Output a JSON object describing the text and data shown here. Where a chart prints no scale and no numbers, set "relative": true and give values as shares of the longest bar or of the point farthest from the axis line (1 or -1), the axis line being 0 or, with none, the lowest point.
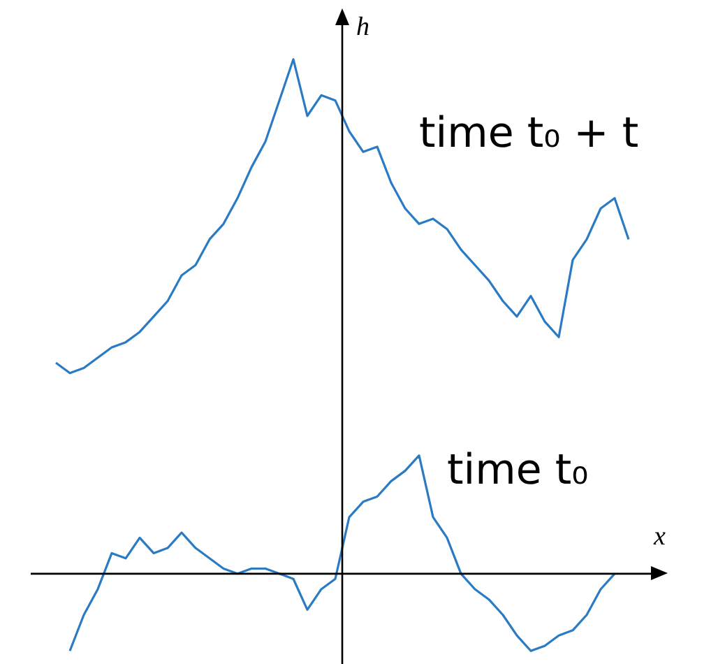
{
  "chart_data": {
    "type": "line",
    "relative": true,
    "xlabel": "x",
    "ylabel": "h",
    "marker": "none",
    "legend": false,
    "categories": [
      null,
      null,
      null,
      null,
      null,
      null,
      null,
      null,
      null,
      null,
      null,
      null,
      null,
      null,
      null,
      null,
      null,
      null,
      null,
      null,
      null,
      null,
      null,
      null,
      null,
      null,
      null,
      null,
      null,
      null,
      null,
      null,
      null,
      null,
      null,
      null,
      null,
      null,
      null,
      null,
      null,
      null
    ],
    "series": [
      {
        "color": "#2b7bc4",
        "values": [
          0.41,
          0.39,
          0.4,
          0.42,
          0.44,
          0.45,
          0.47,
          0.5,
          0.53,
          0.58,
          0.6,
          0.65,
          0.68,
          0.73,
          0.79,
          0.84,
          0.92,
          1,
          0.89,
          0.93,
          0.92,
          0.86,
          0.82,
          0.83,
          0.76,
          0.71,
          0.68,
          0.69,
          0.67,
          0.63,
          0.6,
          0.57,
          0.53,
          0.5,
          0.54,
          0.49,
          0.46,
          0.61,
          0.65,
          0.71,
          0.73,
          0.65
        ]
      },
      {
        "color": "#2b7bc4",
        "values": [
          null,
          -0.15,
          -0.08,
          -0.03,
          0.04,
          0.03,
          0.07,
          0.04,
          0.05,
          0.08,
          0.05,
          0.03,
          0.01,
          0,
          0.01,
          0.01,
          0,
          -0.01,
          -0.07,
          -0.03,
          -0.01,
          0.11,
          0.14,
          0.15,
          0.18,
          0.2,
          0.23,
          0.11,
          0.07,
          0,
          -0.03,
          -0.05,
          -0.08,
          -0.12,
          -0.15,
          -0.14,
          -0.12,
          -0.11,
          -0.08,
          -0.03,
          0,
          null
        ]
      }
    ],
    "annotations": [
      "time t₀ + t",
      "time t₀"
    ]
  }
}
